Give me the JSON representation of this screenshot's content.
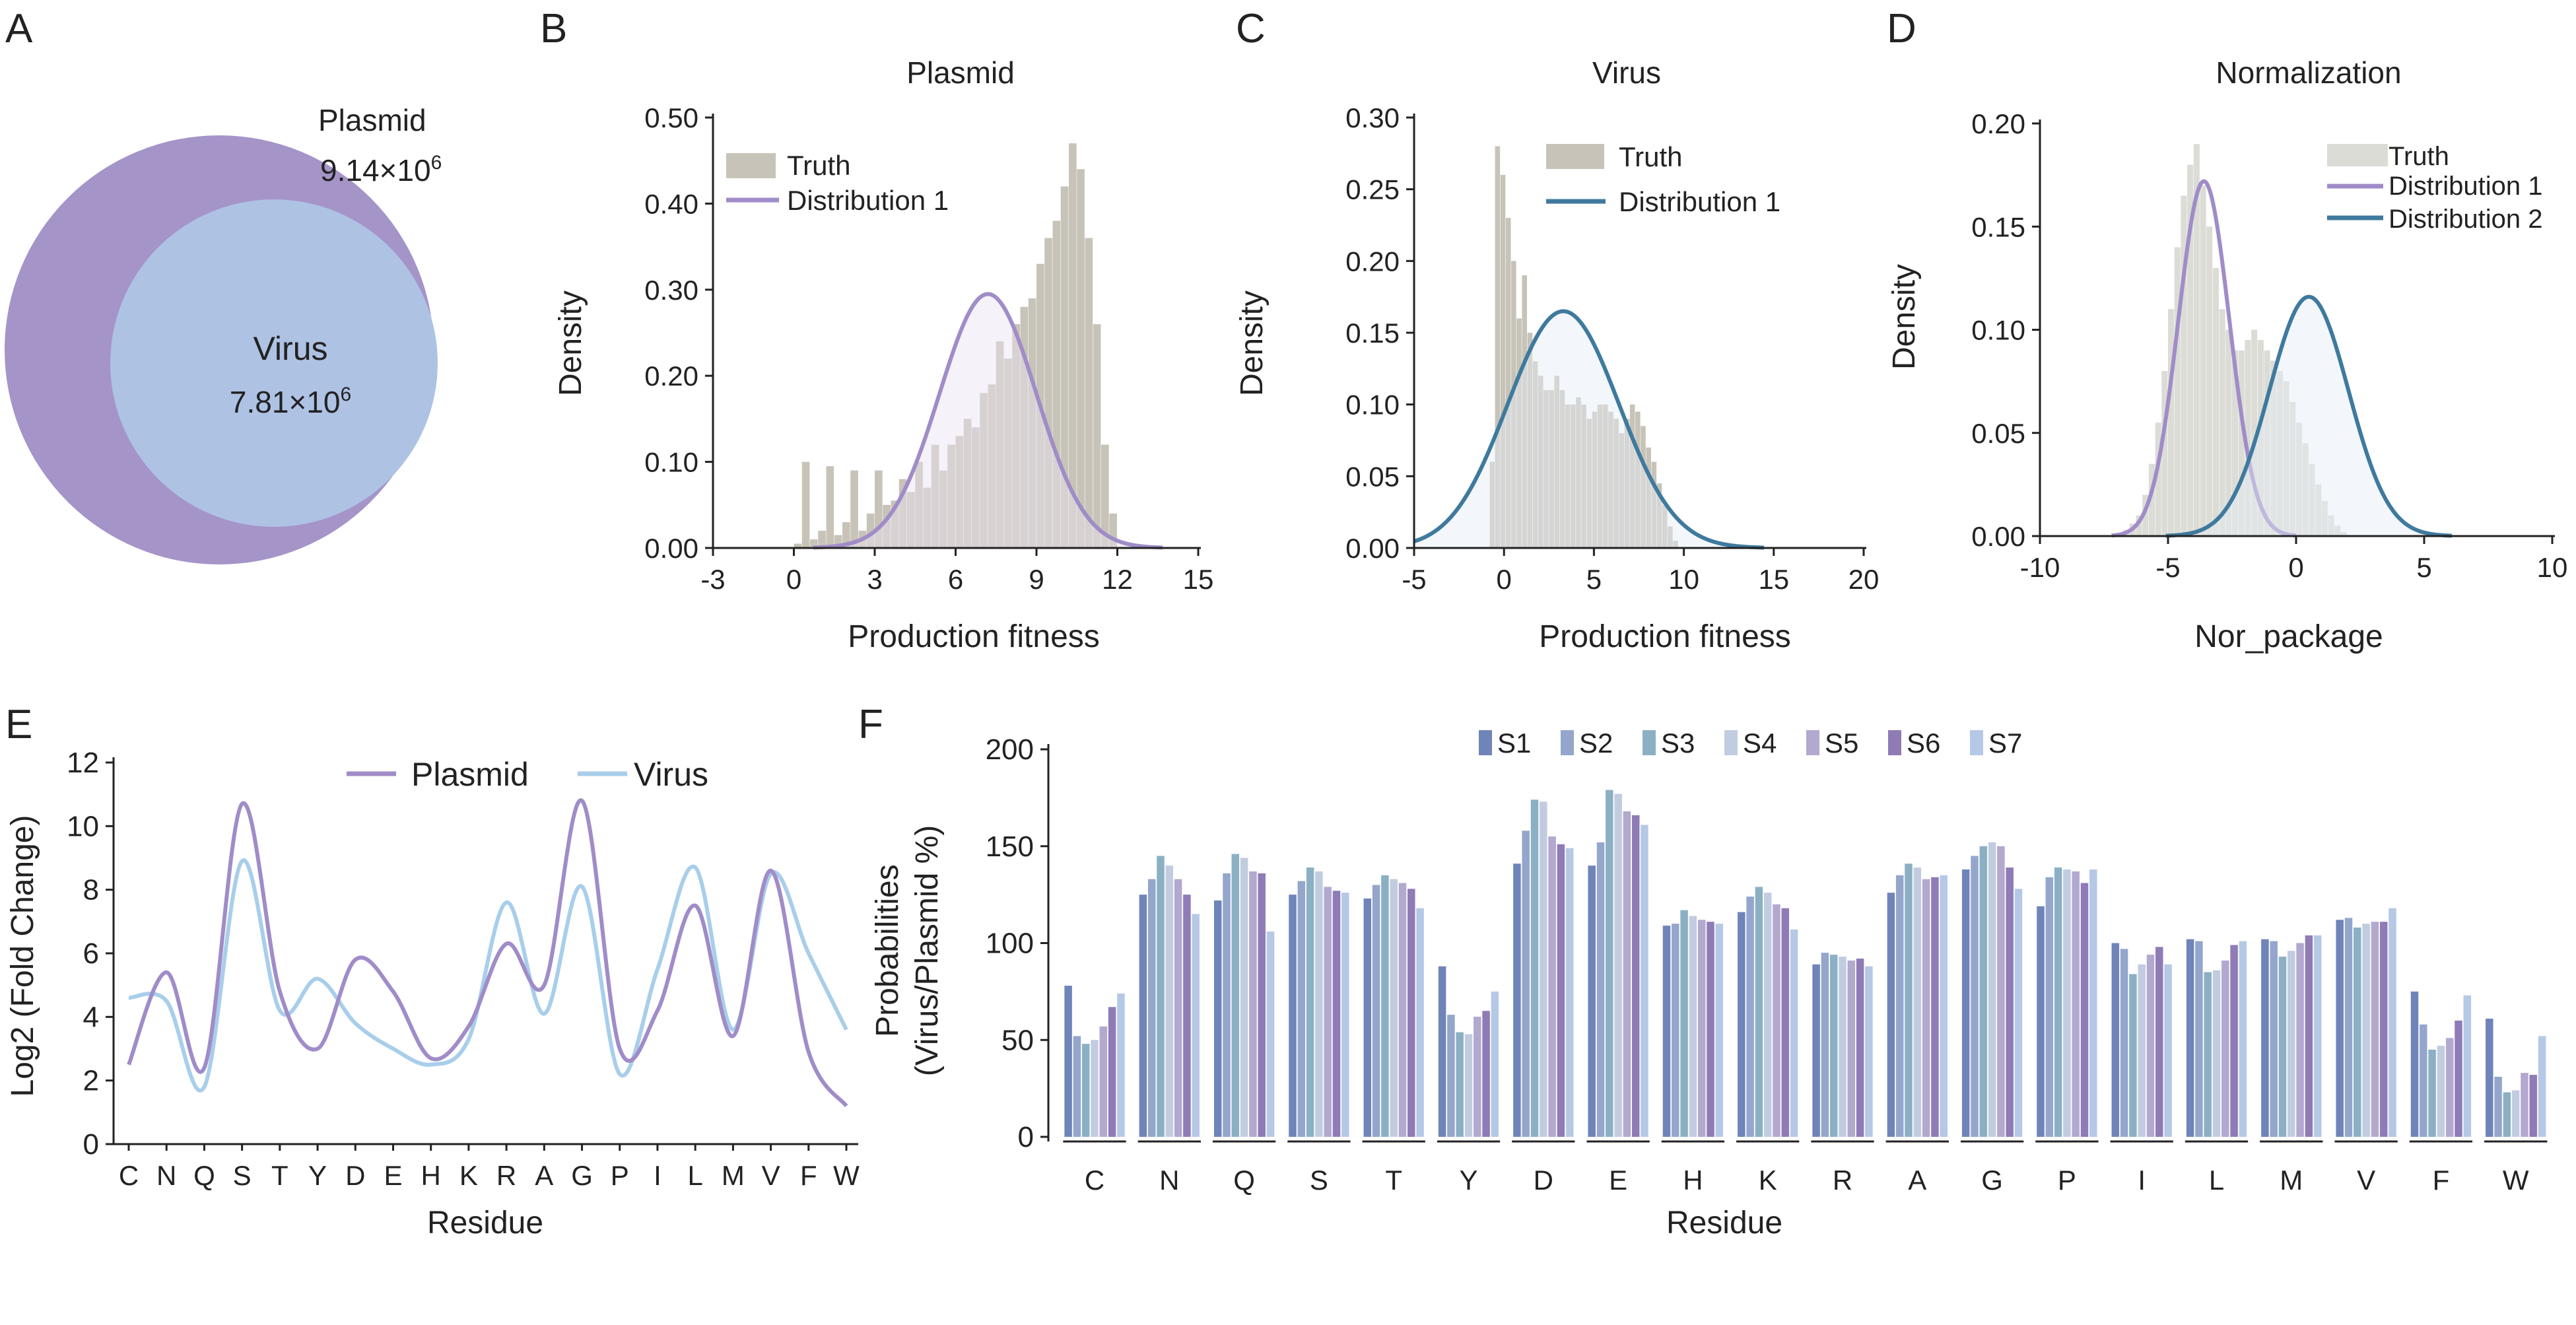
{
  "colors": {
    "plasmid": "#A08CC8",
    "plasmid_fill": "#E8E2F2",
    "virus_light": "#A8CEEA",
    "virus_dark": "#3F7A9E",
    "virus_fill": "#E4EEF6",
    "truth": "#C8C3B8",
    "truth_norm": "#DCDCD6",
    "venn_outer": "#A594C8",
    "venn_inner": "#AEC2E4",
    "bar_series": [
      "#6F84B8",
      "#95A6CC",
      "#8BB0C4",
      "#C2CCE0",
      "#B3A8CE",
      "#8F7BB6",
      "#B5C8E6"
    ]
  },
  "panels": {
    "a": {
      "letter": "A",
      "outer_label": "Plasmid",
      "outer_value": "9.14×10",
      "outer_exp": "6",
      "inner_label": "Virus",
      "inner_value": "7.81×10",
      "inner_exp": "6"
    },
    "b": {
      "letter": "B"
    },
    "c": {
      "letter": "C"
    },
    "d": {
      "letter": "D"
    },
    "e": {
      "letter": "E"
    },
    "f": {
      "letter": "F"
    }
  },
  "chart_data": [
    {
      "id": "b",
      "type": "histogram",
      "title": "Plasmid",
      "xlabel": "Production fitness",
      "ylabel": "Density",
      "xlim": [
        -3,
        15
      ],
      "ylim": [
        0,
        0.5
      ],
      "xticks": [
        -3,
        0,
        3,
        6,
        9,
        12,
        15
      ],
      "yticks": [
        0.0,
        0.1,
        0.2,
        0.3,
        0.4,
        0.5
      ],
      "ytick_labels": [
        "0.00",
        "0.10",
        "0.20",
        "0.30",
        "0.40",
        "0.50"
      ],
      "legend": [
        "Truth",
        "Distribution 1"
      ],
      "legend_position": "top-left",
      "histogram": {
        "name": "Truth",
        "bin_start": 0,
        "bin_width": 0.3,
        "densities": [
          0.005,
          0.1,
          0.01,
          0.02,
          0.095,
          0.015,
          0.03,
          0.09,
          0.02,
          0.04,
          0.09,
          0.05,
          0.055,
          0.08,
          0.065,
          0.1,
          0.07,
          0.12,
          0.09,
          0.12,
          0.13,
          0.15,
          0.14,
          0.18,
          0.19,
          0.24,
          0.22,
          0.26,
          0.28,
          0.29,
          0.33,
          0.36,
          0.38,
          0.42,
          0.47,
          0.44,
          0.36,
          0.26,
          0.12,
          0.04
        ]
      },
      "series": [
        {
          "name": "Distribution 1",
          "mean": 7.2,
          "sd": 1.8,
          "peak": 0.295
        }
      ]
    },
    {
      "id": "c",
      "type": "histogram",
      "title": "Virus",
      "xlabel": "Production fitness",
      "ylabel": "Density",
      "xlim": [
        -5,
        20
      ],
      "ylim": [
        0,
        0.3
      ],
      "xticks": [
        -5,
        0,
        5,
        10,
        15,
        20
      ],
      "yticks": [
        0.0,
        0.05,
        0.1,
        0.15,
        0.2,
        0.25,
        0.3
      ],
      "ytick_labels": [
        "0.00",
        "0.05",
        "0.10",
        "0.15",
        "0.20",
        "0.25",
        "0.30"
      ],
      "legend": [
        "Truth",
        "Distribution 1"
      ],
      "legend_position": "top-right",
      "histogram": {
        "name": "Truth",
        "bin_start": -0.8,
        "bin_width": 0.3,
        "densities": [
          0.06,
          0.28,
          0.26,
          0.23,
          0.2,
          0.16,
          0.19,
          0.15,
          0.13,
          0.12,
          0.11,
          0.11,
          0.12,
          0.11,
          0.1,
          0.1,
          0.105,
          0.1,
          0.09,
          0.095,
          0.1,
          0.1,
          0.095,
          0.09,
          0.08,
          0.09,
          0.1,
          0.095,
          0.085,
          0.07,
          0.06,
          0.045,
          0.03,
          0.015,
          0.005
        ]
      },
      "series": [
        {
          "name": "Distribution 1",
          "mean": 3.3,
          "sd": 3.1,
          "peak": 0.165
        }
      ]
    },
    {
      "id": "d",
      "type": "histogram",
      "title": "Normalization",
      "xlabel": "Nor_package",
      "ylabel": "Density",
      "xlim": [
        -10,
        10
      ],
      "ylim": [
        0,
        0.2
      ],
      "xticks": [
        -10,
        -5,
        0,
        5,
        10
      ],
      "yticks": [
        0.0,
        0.05,
        0.1,
        0.15,
        0.2
      ],
      "ytick_labels": [
        "0.00",
        "0.05",
        "0.10",
        "0.15",
        "0.20"
      ],
      "legend": [
        "Truth",
        "Distribution 1",
        "Distribution 2"
      ],
      "legend_position": "top-right",
      "histogram": {
        "name": "Truth",
        "bin_start": -7,
        "bin_width": 0.25,
        "densities": [
          0.001,
          0.003,
          0.006,
          0.01,
          0.02,
          0.035,
          0.055,
          0.08,
          0.11,
          0.14,
          0.165,
          0.18,
          0.19,
          0.17,
          0.15,
          0.13,
          0.11,
          0.1,
          0.09,
          0.09,
          0.095,
          0.1,
          0.095,
          0.09,
          0.085,
          0.08,
          0.075,
          0.065,
          0.055,
          0.045,
          0.035,
          0.025,
          0.017,
          0.01,
          0.005,
          0.002
        ]
      },
      "series": [
        {
          "name": "Distribution 1",
          "mean": -3.6,
          "sd": 1.0,
          "peak": 0.172
        },
        {
          "name": "Distribution 2",
          "mean": 0.5,
          "sd": 1.55,
          "peak": 0.116
        }
      ]
    },
    {
      "id": "e",
      "type": "line",
      "xlabel": "Residue",
      "ylabel": "Log2 (Fold Change)",
      "ylim": [
        0,
        12
      ],
      "yticks": [
        0,
        2,
        4,
        6,
        8,
        10,
        12
      ],
      "categories": [
        "C",
        "N",
        "Q",
        "S",
        "T",
        "Y",
        "D",
        "E",
        "H",
        "K",
        "R",
        "A",
        "G",
        "P",
        "I",
        "L",
        "M",
        "V",
        "F",
        "W"
      ],
      "legend_position": "top-center",
      "series": [
        {
          "name": "Plasmid",
          "values": [
            2.5,
            5.4,
            2.4,
            10.7,
            4.8,
            3.0,
            5.8,
            4.8,
            2.7,
            3.7,
            6.3,
            5.0,
            10.8,
            3.0,
            4.2,
            7.5,
            3.4,
            8.6,
            2.9,
            1.2
          ]
        },
        {
          "name": "Virus",
          "values": [
            4.6,
            4.5,
            1.8,
            8.9,
            4.2,
            5.2,
            3.8,
            3.0,
            2.5,
            3.3,
            7.6,
            4.1,
            8.1,
            2.2,
            5.5,
            8.7,
            3.6,
            8.5,
            6.0,
            3.6
          ]
        }
      ]
    },
    {
      "id": "f",
      "type": "bar",
      "xlabel": "Residue",
      "ylabel": [
        "Probabilities",
        "(Virus/Plasmid %)"
      ],
      "ylim": [
        0,
        200
      ],
      "yticks": [
        0,
        50,
        100,
        150,
        200
      ],
      "categories": [
        "C",
        "N",
        "Q",
        "S",
        "T",
        "Y",
        "D",
        "E",
        "H",
        "K",
        "R",
        "A",
        "G",
        "P",
        "I",
        "L",
        "M",
        "V",
        "F",
        "W"
      ],
      "legend_position": "top-center",
      "series": [
        {
          "name": "S1",
          "values": [
            78,
            125,
            122,
            125,
            123,
            88,
            141,
            140,
            109,
            116,
            89,
            126,
            138,
            119,
            100,
            102,
            102,
            112,
            75,
            61
          ]
        },
        {
          "name": "S2",
          "values": [
            52,
            133,
            136,
            132,
            130,
            63,
            158,
            152,
            110,
            124,
            95,
            135,
            145,
            134,
            97,
            101,
            101,
            113,
            58,
            31
          ]
        },
        {
          "name": "S3",
          "values": [
            48,
            145,
            146,
            139,
            135,
            54,
            174,
            179,
            117,
            129,
            94,
            141,
            150,
            139,
            84,
            85,
            93,
            108,
            45,
            23
          ]
        },
        {
          "name": "S4",
          "values": [
            50,
            140,
            144,
            137,
            133,
            53,
            173,
            177,
            114,
            126,
            93,
            139,
            152,
            138,
            89,
            86,
            96,
            110,
            47,
            24
          ]
        },
        {
          "name": "S5",
          "values": [
            57,
            133,
            137,
            129,
            131,
            62,
            155,
            168,
            112,
            120,
            91,
            133,
            150,
            137,
            94,
            91,
            100,
            111,
            51,
            33
          ]
        },
        {
          "name": "S6",
          "values": [
            67,
            125,
            136,
            127,
            128,
            65,
            151,
            166,
            111,
            118,
            92,
            134,
            139,
            131,
            98,
            99,
            104,
            111,
            60,
            32
          ]
        },
        {
          "name": "S7",
          "values": [
            74,
            115,
            106,
            126,
            118,
            75,
            149,
            161,
            110,
            107,
            88,
            135,
            128,
            138,
            89,
            101,
            104,
            118,
            73,
            52
          ]
        }
      ]
    }
  ]
}
